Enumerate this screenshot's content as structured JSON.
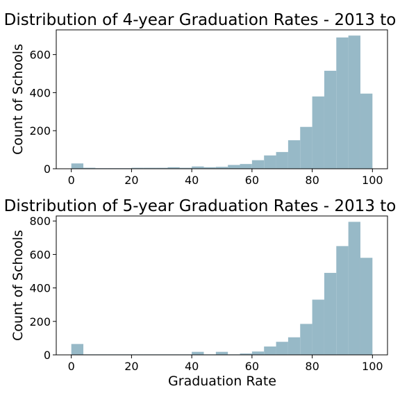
{
  "colors": {
    "bar": "#97b9c7",
    "axis": "#000000",
    "background": "#ffffff"
  },
  "chart_data": [
    {
      "type": "bar",
      "title": "Distribution of 4-year Graduation Rates - 2013 to",
      "xlabel": "",
      "ylabel": "Count of Schools",
      "xlim": [
        -5,
        105
      ],
      "ylim": [
        0,
        730
      ],
      "xticks": [
        0,
        20,
        40,
        60,
        80,
        100
      ],
      "yticks": [
        0,
        200,
        400,
        600
      ],
      "bin_width": 4,
      "x": [
        0,
        4,
        8,
        12,
        16,
        20,
        24,
        28,
        32,
        36,
        40,
        44,
        48,
        52,
        56,
        60,
        64,
        68,
        72,
        76,
        80,
        84,
        88,
        92,
        96
      ],
      "values": [
        28,
        5,
        3,
        3,
        3,
        5,
        5,
        5,
        8,
        5,
        12,
        8,
        10,
        20,
        25,
        45,
        70,
        88,
        150,
        220,
        380,
        515,
        690,
        700,
        395
      ],
      "grid": false
    },
    {
      "type": "bar",
      "title": "Distribution of 5-year Graduation Rates - 2013 to",
      "xlabel": "Graduation Rate",
      "ylabel": "Count of Schools",
      "xlim": [
        -5,
        105
      ],
      "ylim": [
        0,
        830
      ],
      "xticks": [
        0,
        20,
        40,
        60,
        80,
        100
      ],
      "yticks": [
        0,
        200,
        400,
        600,
        800
      ],
      "bin_width": 4,
      "x": [
        0,
        4,
        8,
        12,
        16,
        20,
        24,
        28,
        32,
        36,
        40,
        44,
        48,
        52,
        56,
        60,
        64,
        68,
        72,
        76,
        80,
        84,
        88,
        92,
        96
      ],
      "values": [
        65,
        3,
        3,
        3,
        3,
        3,
        3,
        3,
        3,
        3,
        18,
        3,
        18,
        3,
        8,
        20,
        50,
        78,
        105,
        185,
        330,
        490,
        650,
        795,
        580
      ],
      "grid": false
    }
  ]
}
